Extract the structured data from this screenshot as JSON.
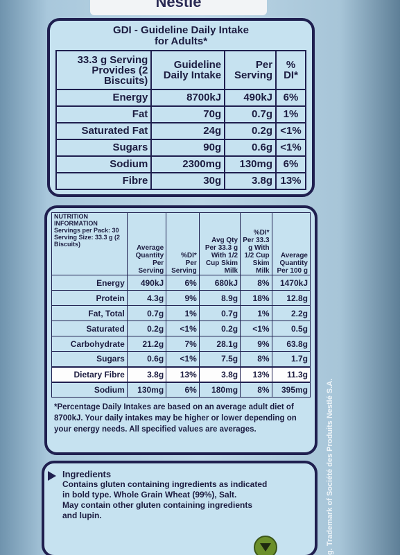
{
  "brand": "Nestlé",
  "gdi": {
    "title_line1": "GDI - Guideline Daily Intake",
    "title_line2": "for Adults*",
    "headers": [
      "33.3 g Serving Provides (2 Biscuits)",
      "Guideline Daily Intake",
      "Per Serving",
      "% DI*"
    ],
    "rows": [
      [
        "Energy",
        "8700kJ",
        "490kJ",
        "6%"
      ],
      [
        "Fat",
        "70g",
        "0.7g",
        "1%"
      ],
      [
        "Saturated Fat",
        "24g",
        "0.2g",
        "<1%"
      ],
      [
        "Sugars",
        "90g",
        "0.6g",
        "<1%"
      ],
      [
        "Sodium",
        "2300mg",
        "130mg",
        "6%"
      ],
      [
        "Fibre",
        "30g",
        "3.8g",
        "13%"
      ]
    ]
  },
  "nip": {
    "header_info": "NUTRITION INFORMATION Servings per Pack: 30 Serving Size: 33.3 g (2 Biscuits)",
    "headers": [
      "Average Quantity Per Serving",
      "%DI* Per Serving",
      "Avg Qty Per 33.3 g With 1/2 Cup Skim Milk",
      "%DI* Per 33.3 g With 1/2 Cup Skim Milk",
      "Average Quantity Per 100 g"
    ],
    "rows": [
      [
        "Energy",
        "490kJ",
        "6%",
        "680kJ",
        "8%",
        "1470kJ"
      ],
      [
        "Protein",
        "4.3g",
        "9%",
        "8.9g",
        "18%",
        "12.8g"
      ],
      [
        "Fat, Total",
        "0.7g",
        "1%",
        "0.7g",
        "1%",
        "2.2g"
      ],
      [
        "Saturated",
        "0.2g",
        "<1%",
        "0.2g",
        "<1%",
        "0.5g"
      ],
      [
        "Carbohydrate",
        "21.2g",
        "7%",
        "28.1g",
        "9%",
        "63.8g"
      ],
      [
        "Sugars",
        "0.6g",
        "<1%",
        "7.5g",
        "8%",
        "1.7g"
      ],
      [
        "Dietary Fibre",
        "3.8g",
        "13%",
        "3.8g",
        "13%",
        "11.3g"
      ],
      [
        "Sodium",
        "130mg",
        "6%",
        "180mg",
        "8%",
        "395mg"
      ]
    ],
    "footnote": "*Percentage Daily Intakes are based on an average adult diet of 8700kJ. Your daily intakes may be higher or lower depending on your energy needs. All specified values are averages."
  },
  "ingredients": {
    "heading": "Ingredients",
    "line1": "Contains gluten containing ingredients as indicated",
    "line2": "in bold type. Whole Grain Wheat (99%), Salt.",
    "line3": "May contain other gluten containing ingredients",
    "line4": "and lupin."
  },
  "side_text": "g. Trademark of Société des Produits Nestlé S.A.",
  "colors": {
    "panel": "#c6e2f0",
    "border": "#1f1f4f",
    "background": "#bcd6e6"
  }
}
